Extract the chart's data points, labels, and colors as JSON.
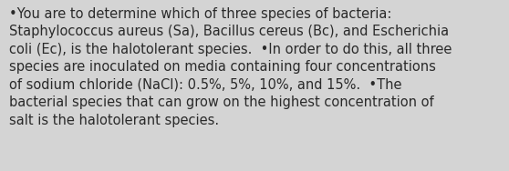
{
  "background_color": "#d4d4d4",
  "text_color": "#2a2a2a",
  "font_size": 10.5,
  "fig_width": 5.58,
  "fig_height": 1.88,
  "dpi": 100,
  "line1": "•You are to determine which of three species of bacteria:",
  "line2": "Staphylococcus aureus (Sa), Bacillus cereus (Bc), and Escherichia",
  "line3": "coli (Ec), is the halotolerant species.  •In order to do this, all three",
  "line4": "species are inoculated on media containing four concentrations",
  "line5": "of sodium chloride (NaCl): 0.5%, 5%, 10%, and 15%.  •The",
  "line6": "bacterial species that can grow on the highest concentration of",
  "line7": "salt is the halotolerant species."
}
